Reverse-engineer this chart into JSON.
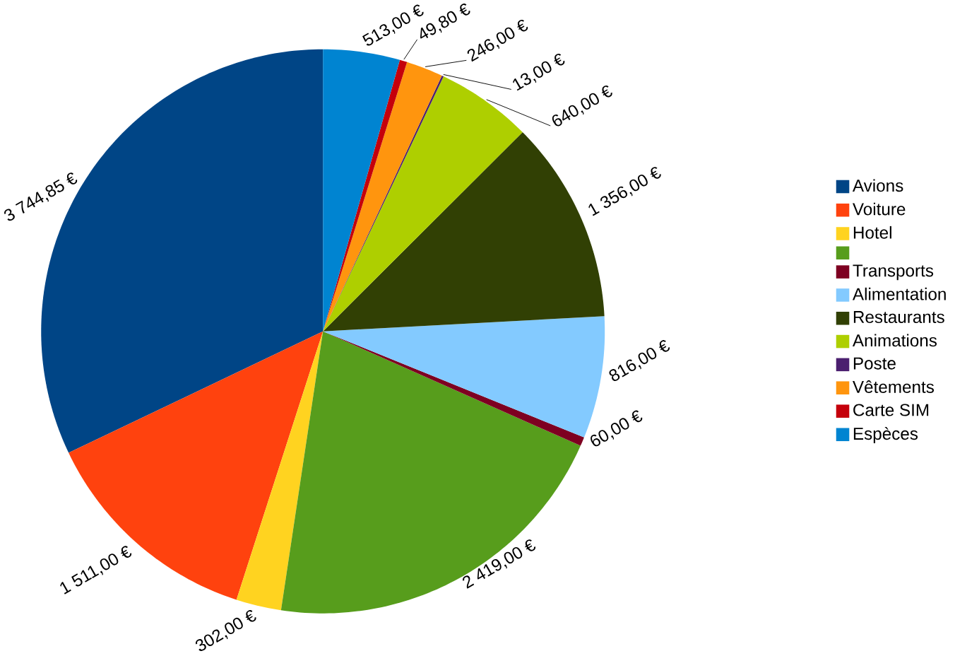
{
  "chart_data": {
    "type": "pie",
    "categories": [
      "Avions",
      "Voiture",
      "Hotel",
      null,
      "Transports",
      "Alimentation",
      "Restaurants",
      "Animations",
      "Poste",
      "Vêtements",
      "Carte SIM",
      "Espèces"
    ],
    "values": [
      3744.85,
      1511,
      302,
      2419,
      60,
      816,
      1356,
      640,
      13,
      246,
      49.8,
      513
    ],
    "value_labels": [
      "3 744,85 €",
      "1 511,00 €",
      "302,00 €",
      "2 419,00 €",
      "60,00 €",
      "816,00 €",
      "1 356,00 €",
      "640,00 €",
      "13,00 €",
      "246,00 €",
      "49,80 €",
      "513,00 €"
    ],
    "colors": [
      "#004586",
      "#ff420e",
      "#ffd320",
      "#579d1c",
      "#7e0021",
      "#83caff",
      "#314004",
      "#aecf00",
      "#4b1f6f",
      "#ff950e",
      "#c5000b",
      "#0084d1"
    ],
    "legend": "right"
  }
}
